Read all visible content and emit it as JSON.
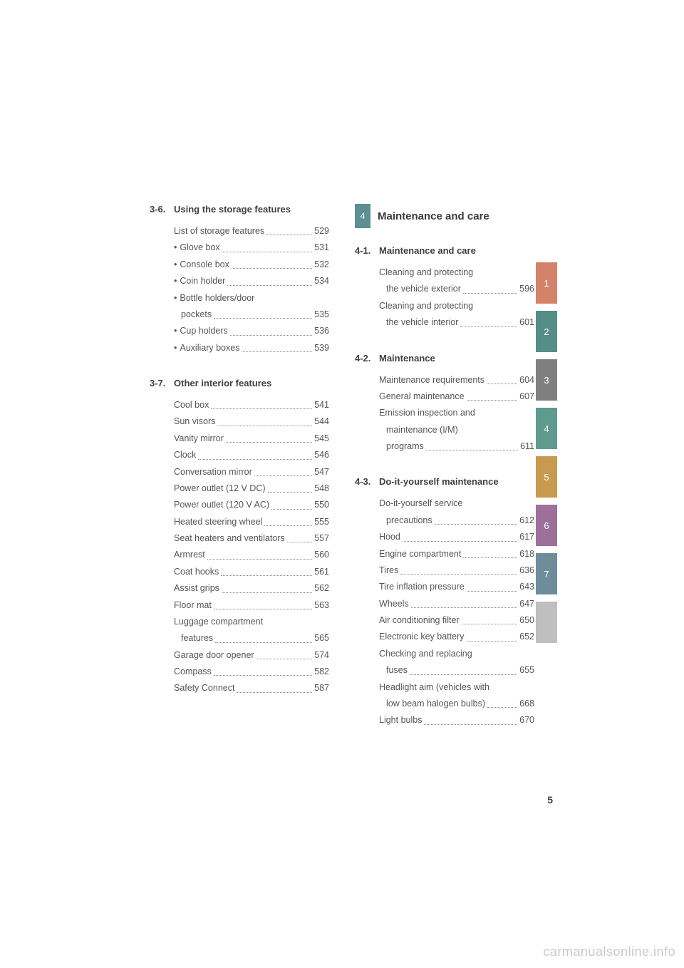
{
  "page_number": "5",
  "watermark": "carmanualsonline.info",
  "chapter": {
    "num": "4",
    "title": "Maintenance and care",
    "chip_color": "#5e8f95"
  },
  "tabs": [
    {
      "n": "1",
      "color": "#d5826b"
    },
    {
      "n": "2",
      "color": "#558d87"
    },
    {
      "n": "3",
      "color": "#7f7f7f"
    },
    {
      "n": "4",
      "color": "#5e9a8e"
    },
    {
      "n": "5",
      "color": "#c79a4f"
    },
    {
      "n": "6",
      "color": "#9d709a"
    },
    {
      "n": "7",
      "color": "#6d8d9b"
    },
    {
      "n": "",
      "color": "#bfbfbf"
    }
  ],
  "left": [
    {
      "num": "3-6.",
      "title": "Using the storage features",
      "items": [
        {
          "label": "List of storage features",
          "page": "529"
        },
        {
          "bullet": "•",
          "label": "Glove box",
          "page": "531"
        },
        {
          "bullet": "•",
          "label": "Console box",
          "page": "532"
        },
        {
          "bullet": "•",
          "label": "Coin holder",
          "page": "534"
        },
        {
          "bullet": "•",
          "label": "Bottle holders/door"
        },
        {
          "cont": true,
          "label": "pockets",
          "page": "535"
        },
        {
          "bullet": "•",
          "label": "Cup holders",
          "page": "536"
        },
        {
          "bullet": "•",
          "label": "Auxiliary boxes",
          "page": "539"
        }
      ]
    },
    {
      "num": "3-7.",
      "title": "Other interior features",
      "items": [
        {
          "label": "Cool box",
          "page": "541"
        },
        {
          "label": "Sun visors",
          "page": "544"
        },
        {
          "label": "Vanity mirror",
          "page": "545"
        },
        {
          "label": "Clock",
          "page": "546"
        },
        {
          "label": "Conversation mirror",
          "page": "547"
        },
        {
          "label": "Power outlet (12 V DC)",
          "page": "548"
        },
        {
          "label": "Power outlet (120 V AC)",
          "page": "550"
        },
        {
          "label": "Heated steering wheel",
          "page": "555"
        },
        {
          "label": "Seat heaters and ventilators",
          "page": "557"
        },
        {
          "label": "Armrest",
          "page": "560"
        },
        {
          "label": "Coat hooks",
          "page": "561"
        },
        {
          "label": "Assist grips",
          "page": "562"
        },
        {
          "label": "Floor mat",
          "page": "563"
        },
        {
          "label": "Luggage compartment"
        },
        {
          "cont": true,
          "label": "features",
          "page": "565"
        },
        {
          "label": "Garage door opener",
          "page": "574"
        },
        {
          "label": "Compass",
          "page": "582"
        },
        {
          "label": "Safety Connect",
          "page": "587"
        }
      ]
    }
  ],
  "right": [
    {
      "num": "4-1.",
      "title": "Maintenance and care",
      "items": [
        {
          "label": "Cleaning and protecting"
        },
        {
          "cont": true,
          "label": "the vehicle exterior",
          "page": "596"
        },
        {
          "label": "Cleaning and protecting"
        },
        {
          "cont": true,
          "label": "the vehicle interior",
          "page": "601"
        }
      ]
    },
    {
      "num": "4-2.",
      "title": "Maintenance",
      "items": [
        {
          "label": "Maintenance requirements",
          "page": "604"
        },
        {
          "label": "General maintenance",
          "page": "607"
        },
        {
          "label": "Emission inspection and"
        },
        {
          "cont": true,
          "label": "maintenance (I/M)"
        },
        {
          "cont": true,
          "label": "programs",
          "page": "611"
        }
      ]
    },
    {
      "num": "4-3.",
      "title": "Do-it-yourself maintenance",
      "items": [
        {
          "label": "Do-it-yourself service"
        },
        {
          "cont": true,
          "label": "precautions",
          "page": "612"
        },
        {
          "label": "Hood",
          "page": "617"
        },
        {
          "label": "Engine compartment",
          "page": "618"
        },
        {
          "label": "Tires",
          "page": "636"
        },
        {
          "label": "Tire inflation pressure",
          "page": "643"
        },
        {
          "label": "Wheels",
          "page": "647"
        },
        {
          "label": "Air conditioning filter",
          "page": "650"
        },
        {
          "label": "Electronic key battery",
          "page": "652"
        },
        {
          "label": "Checking and replacing"
        },
        {
          "cont": true,
          "label": "fuses",
          "page": "655"
        },
        {
          "label": "Headlight aim (vehicles with"
        },
        {
          "cont": true,
          "label": "low beam halogen bulbs)",
          "page": "668"
        },
        {
          "label": "Light bulbs",
          "page": "670"
        }
      ]
    }
  ]
}
